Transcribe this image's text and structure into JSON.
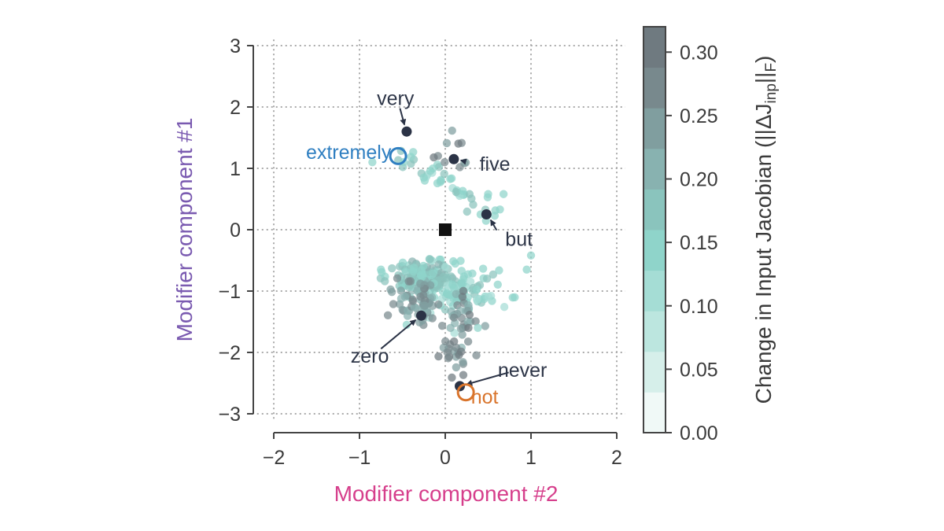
{
  "chart_data": {
    "type": "scatter",
    "xlabel": "Modifier component #2",
    "ylabel": "Modifier component #1",
    "xlim": [
      -2.25,
      2.1
    ],
    "ylim": [
      -3.1,
      3.1
    ],
    "xticks": [
      -2,
      -1,
      0,
      1,
      2
    ],
    "yticks": [
      -3,
      -2,
      -1,
      0,
      1,
      2,
      3
    ],
    "grid": true,
    "colors": {
      "xlabel": "#d63f8c",
      "ylabel": "#7a5ab0",
      "highlight": "#2b3346",
      "extremely": "#2f7fc1",
      "not": "#d9742b",
      "origin": "#111111",
      "axis": "#444444",
      "grid": "#aaaaaa"
    },
    "colorbar": {
      "label_main": "Change in Input Jacobian (||ΔJ",
      "label_sub": "inp",
      "label_mid": "||",
      "label_sub2": "F",
      "label_end": ")",
      "min": 0.0,
      "max": 0.32,
      "ticks": [
        {
          "value": 0.0,
          "label": "0.00"
        },
        {
          "value": 0.05,
          "label": "0.05"
        },
        {
          "value": 0.1,
          "label": "0.10"
        },
        {
          "value": 0.15,
          "label": "0.15"
        },
        {
          "value": 0.2,
          "label": "0.20"
        },
        {
          "value": 0.25,
          "label": "0.25"
        },
        {
          "value": 0.3,
          "label": "0.30"
        }
      ],
      "levels": [
        "#f0f9f7",
        "#d6efea",
        "#bce6df",
        "#a5ddd5",
        "#8fd4ca",
        "#8ac4bd",
        "#88b2b0",
        "#809e9f",
        "#78898d",
        "#6f7a80"
      ]
    },
    "highlighted_points": [
      {
        "word": "very",
        "x": -0.45,
        "y": 1.6,
        "label_x": -0.58,
        "label_y": 2.15,
        "anchor": "middle"
      },
      {
        "word": "five",
        "x": 0.1,
        "y": 1.15,
        "label_x": 0.4,
        "label_y": 1.08,
        "anchor": "start"
      },
      {
        "word": "but",
        "x": 0.48,
        "y": 0.25,
        "label_x": 0.7,
        "label_y": -0.15,
        "anchor": "start"
      },
      {
        "word": "zero",
        "x": -0.28,
        "y": -1.4,
        "label_x": -0.88,
        "label_y": -2.05,
        "anchor": "middle"
      },
      {
        "word": "never",
        "x": 0.17,
        "y": -2.55,
        "label_x": 0.9,
        "label_y": -2.28,
        "anchor": "middle"
      }
    ],
    "ring_points": [
      {
        "word": "extremely",
        "x": -0.55,
        "y": 1.2,
        "color_key": "extremely",
        "label_x": -0.63,
        "label_y": 1.27,
        "anchor": "end"
      },
      {
        "word": "not",
        "x": 0.24,
        "y": -2.65,
        "color_key": "not",
        "label_x": 0.3,
        "label_y": -2.72,
        "anchor": "start"
      }
    ],
    "origin_marker": {
      "x": 0.0,
      "y": 0.0,
      "shape": "square"
    }
  }
}
